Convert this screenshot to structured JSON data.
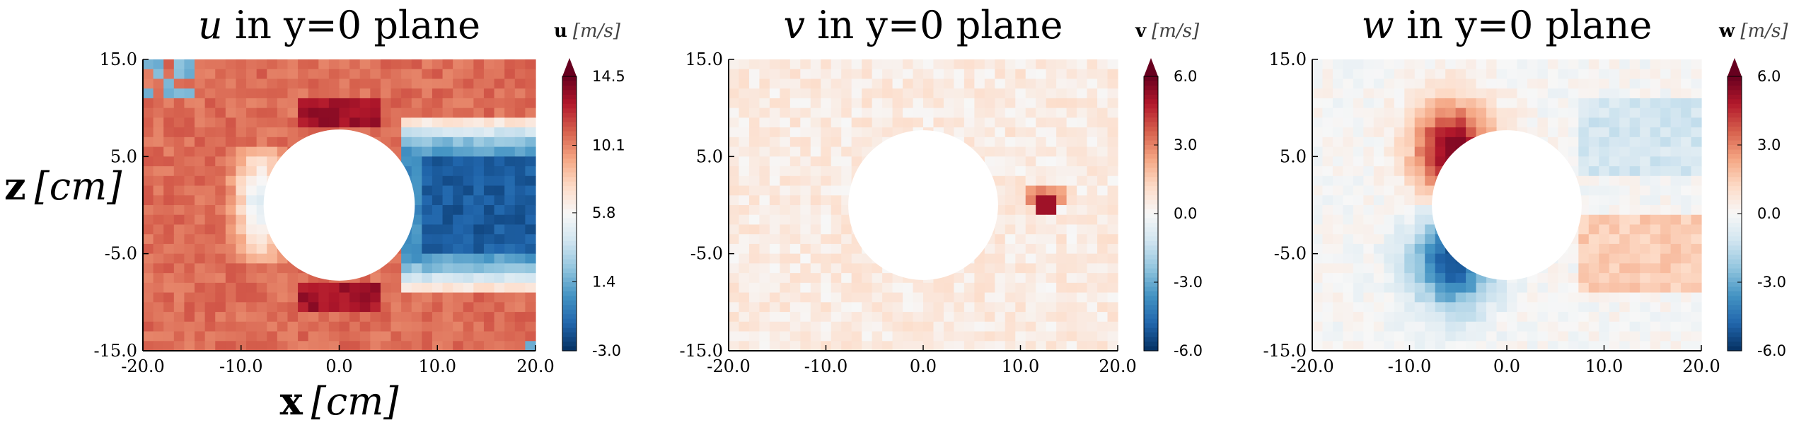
{
  "chart_data": [
    {
      "type": "heatmap",
      "title": "u in y=0 plane",
      "title_var": "u",
      "title_rest": " in y=0 plane",
      "xlabel_var": "x",
      "xlabel_unit": "[cm]",
      "ylabel_var": "z",
      "ylabel_unit": "[cm]",
      "xlim": [
        -20,
        20
      ],
      "ylim": [
        -15,
        15
      ],
      "xticks": [
        "-20.0",
        "-10.0",
        "0.0",
        "10.0",
        "20.0"
      ],
      "yticks": [
        "-15.0",
        "-5.0",
        "5.0",
        "15.0"
      ],
      "colorbar": {
        "label_var": "u",
        "label_unit": "[m/s]",
        "ticks": [
          "-3.0",
          "1.4",
          "5.8",
          "10.1",
          "14.5"
        ],
        "range": [
          -3.0,
          14.5
        ],
        "extend": "max"
      },
      "field": "u",
      "obstacle": {
        "shape": "circle",
        "center_x": 0,
        "center_z": 0,
        "radius": 7.7
      }
    },
    {
      "type": "heatmap",
      "title": "v in y=0 plane",
      "title_var": "v",
      "title_rest": " in y=0 plane",
      "xlim": [
        -20,
        20
      ],
      "ylim": [
        -15,
        15
      ],
      "xticks": [
        "-20.0",
        "-10.0",
        "0.0",
        "10.0",
        "20.0"
      ],
      "yticks": [
        "-15.0",
        "-5.0",
        "5.0",
        "15.0"
      ],
      "colorbar": {
        "label_var": "v",
        "label_unit": "[m/s]",
        "ticks": [
          "-6.0",
          "-3.0",
          "0.0",
          "3.0",
          "6.0"
        ],
        "range": [
          -6.0,
          6.0
        ],
        "extend": "max"
      },
      "field": "v",
      "obstacle": {
        "shape": "circle",
        "center_x": 0,
        "center_z": 0,
        "radius": 7.7
      }
    },
    {
      "type": "heatmap",
      "title": "w in y=0 plane",
      "title_var": "w",
      "title_rest": " in y=0 plane",
      "xlim": [
        -20,
        20
      ],
      "ylim": [
        -15,
        15
      ],
      "xticks": [
        "-20.0",
        "-10.0",
        "0.0",
        "10.0",
        "20.0"
      ],
      "yticks": [
        "-15.0",
        "-5.0",
        "5.0",
        "15.0"
      ],
      "colorbar": {
        "label_var": "w",
        "label_unit": "[m/s]",
        "ticks": [
          "-6.0",
          "-3.0",
          "0.0",
          "3.0",
          "6.0"
        ],
        "range": [
          -6.0,
          6.0
        ],
        "extend": "max"
      },
      "field": "w",
      "obstacle": {
        "shape": "circle",
        "center_x": 0,
        "center_z": 0,
        "radius": 7.7
      }
    }
  ],
  "colormap": [
    "#053061",
    "#2166ac",
    "#4393c3",
    "#92c5de",
    "#d1e5f0",
    "#f7f7f7",
    "#fddbc7",
    "#f4a582",
    "#d6604d",
    "#b2182b",
    "#67001f"
  ]
}
